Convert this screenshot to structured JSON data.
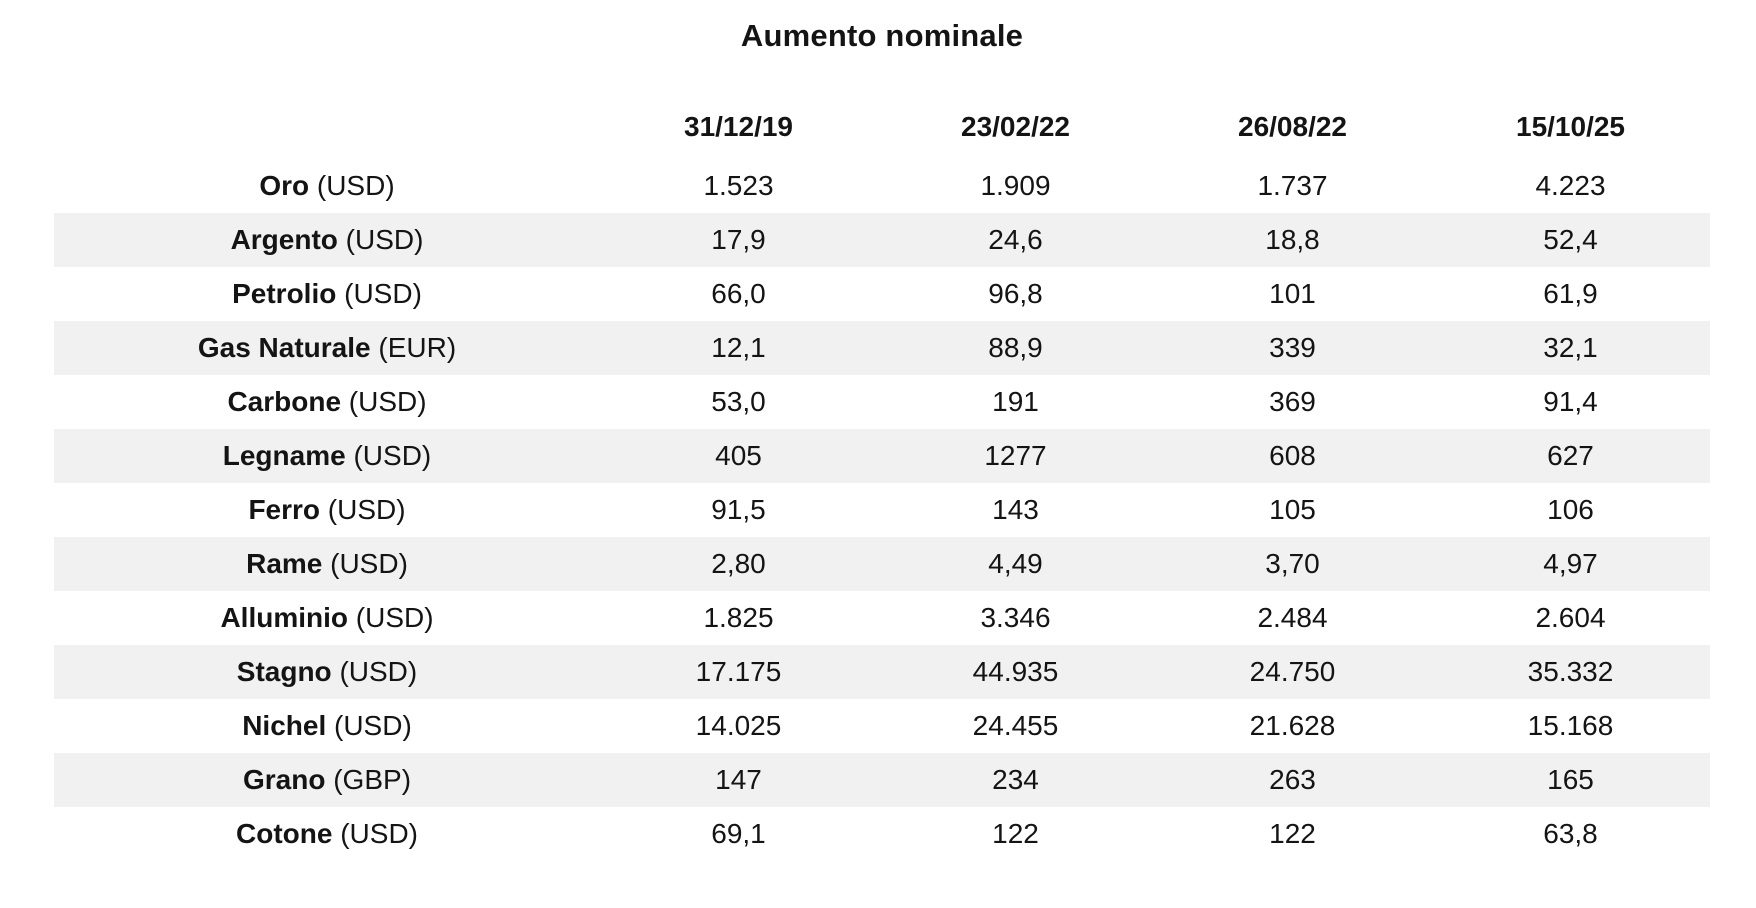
{
  "title": "Aumento nominale",
  "chart_data": {
    "type": "table",
    "title": "Aumento nominale",
    "columns": [
      "31/12/19",
      "23/02/22",
      "26/08/22",
      "15/10/25"
    ],
    "rows": [
      {
        "name": "Oro",
        "currency": "USD",
        "values": [
          "1.523",
          "1.909",
          "1.737",
          "4.223"
        ]
      },
      {
        "name": "Argento",
        "currency": "USD",
        "values": [
          "17,9",
          "24,6",
          "18,8",
          "52,4"
        ]
      },
      {
        "name": "Petrolio",
        "currency": "USD",
        "values": [
          "66,0",
          "96,8",
          "101",
          "61,9"
        ]
      },
      {
        "name": "Gas Naturale",
        "currency": "EUR",
        "values": [
          "12,1",
          "88,9",
          "339",
          "32,1"
        ]
      },
      {
        "name": "Carbone",
        "currency": "USD",
        "values": [
          "53,0",
          "191",
          "369",
          "91,4"
        ]
      },
      {
        "name": "Legname",
        "currency": "USD",
        "values": [
          "405",
          "1277",
          "608",
          "627"
        ]
      },
      {
        "name": "Ferro",
        "currency": "USD",
        "values": [
          "91,5",
          "143",
          "105",
          "106"
        ]
      },
      {
        "name": "Rame",
        "currency": "USD",
        "values": [
          "2,80",
          "4,49",
          "3,70",
          "4,97"
        ]
      },
      {
        "name": "Alluminio",
        "currency": "USD",
        "values": [
          "1.825",
          "3.346",
          "2.484",
          "2.604"
        ]
      },
      {
        "name": "Stagno",
        "currency": "USD",
        "values": [
          "17.175",
          "44.935",
          "24.750",
          "35.332"
        ]
      },
      {
        "name": "Nichel",
        "currency": "USD",
        "values": [
          "14.025",
          "24.455",
          "21.628",
          "15.168"
        ]
      },
      {
        "name": "Grano",
        "currency": "GBP",
        "values": [
          "147",
          "234",
          "263",
          "165"
        ]
      },
      {
        "name": "Cotone",
        "currency": "USD",
        "values": [
          "69,1",
          "122",
          "122",
          "63,8"
        ]
      }
    ],
    "layout": {
      "stripe_color": "#f1f1f2",
      "text_color": "#141414",
      "grid": "none",
      "cell_alignment": "center",
      "striped_rows": "even"
    }
  }
}
